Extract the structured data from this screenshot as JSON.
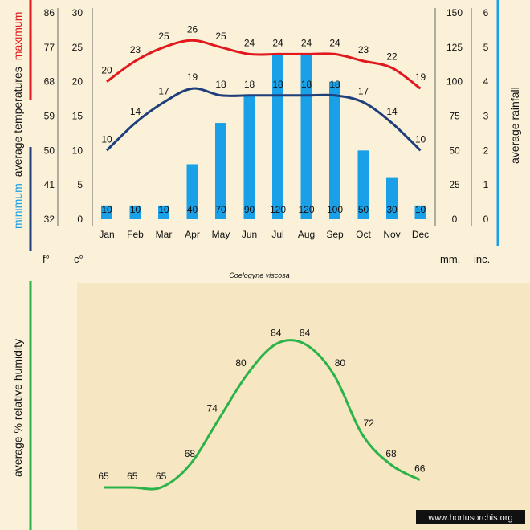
{
  "colors": {
    "background": "#fbf1d9",
    "paper": "#f6e7c2",
    "maximum": "#e1191e",
    "minimum": "#1f3f7a",
    "rainfall": "#1aa0e6",
    "humidity": "#2bb34a"
  },
  "labels": {
    "unit_f": "f°",
    "unit_c": "c°",
    "unit_mm": "mm.",
    "unit_inc": "inc.",
    "species": "Coelogyne viscosa",
    "left_axis_minimum": "minimum",
    "left_axis_middle": "average temperatures",
    "left_axis_maximum": "maximum",
    "right_axis": "average rainfall",
    "humidity_axis": "average %  relative humidity",
    "watermark": "www.hortusorchis.org"
  },
  "chart_data": [
    {
      "type": "bar+line",
      "categories": [
        "Jan",
        "Feb",
        "Mar",
        "Apr",
        "May",
        "Jun",
        "Jul",
        "Aug",
        "Sep",
        "Oct",
        "Nov",
        "Dec"
      ],
      "series": [
        {
          "name": "maximum",
          "kind": "line",
          "axis": "celsius",
          "values": [
            20,
            23,
            25,
            26,
            25,
            24,
            24,
            24,
            24,
            23,
            22,
            19
          ]
        },
        {
          "name": "minimum",
          "kind": "line",
          "axis": "celsius",
          "values": [
            10,
            14,
            17,
            19,
            18,
            18,
            18,
            18,
            18,
            17,
            14,
            10
          ]
        },
        {
          "kind": "bar",
          "axis": "mm",
          "values": [
            10,
            10,
            10,
            40,
            70,
            90,
            120,
            120,
            100,
            50,
            30,
            10
          ]
        }
      ],
      "axes": {
        "fahrenheit": {
          "ticks": [
            "86",
            "77",
            "68",
            "59",
            "50",
            "41",
            "32"
          ]
        },
        "celsius": {
          "range": [
            0,
            30
          ],
          "ticks": [
            "30",
            "25",
            "20",
            "15",
            "10",
            "5",
            "0"
          ]
        },
        "mm": {
          "range": [
            0,
            150
          ],
          "ticks": [
            "150",
            "125",
            "100",
            "75",
            "50",
            "25",
            "0"
          ]
        },
        "inches": {
          "range": [
            0,
            6
          ],
          "ticks": [
            "6",
            "5",
            "4",
            "3",
            "2",
            "1",
            "0"
          ]
        }
      },
      "grid": false
    },
    {
      "type": "line",
      "categories": [
        "Jan",
        "Feb",
        "Mar",
        "Apr",
        "May",
        "Jun",
        "Jul",
        "Aug",
        "Sep",
        "Oct",
        "Nov",
        "Dec"
      ],
      "series": [
        {
          "kind": "line",
          "values": [
            65,
            65,
            65,
            68,
            74,
            80,
            84,
            84,
            80,
            72,
            68,
            66
          ]
        }
      ],
      "ylim": [
        60,
        90
      ],
      "grid": false
    }
  ]
}
